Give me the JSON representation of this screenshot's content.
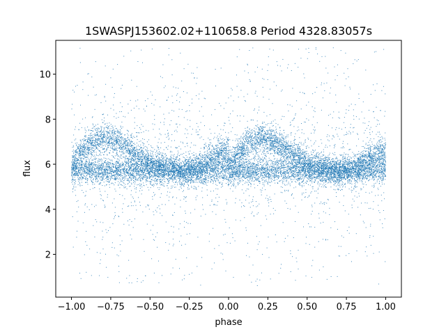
{
  "chart_data": {
    "type": "scatter",
    "title": "1SWASPJ153602.02+110658.8 Period 4328.83057s",
    "xlabel": "phase",
    "ylabel": "flux",
    "xlim": [
      -1.1,
      1.1
    ],
    "ylim": [
      0.1,
      11.5
    ],
    "xticks": [
      -1.0,
      -0.75,
      -0.5,
      -0.25,
      0.0,
      0.25,
      0.5,
      0.75,
      1.0
    ],
    "xtick_labels": [
      "−1.00",
      "−0.75",
      "−0.50",
      "−0.25",
      "0.00",
      "0.25",
      "0.50",
      "0.75",
      "1.00"
    ],
    "yticks": [
      2,
      4,
      6,
      8,
      10
    ],
    "ytick_labels": [
      "2",
      "4",
      "6",
      "8",
      "10"
    ],
    "grid": false,
    "marker_color": "#1f77b4",
    "x_range": [
      -1.0,
      1.0
    ],
    "period": 1.0,
    "baseline_flux": 5.7,
    "upper_branch": {
      "phase": [
        0.0,
        0.05,
        0.1,
        0.15,
        0.2,
        0.25,
        0.3,
        0.35,
        0.4,
        0.45,
        0.5,
        0.55,
        0.6,
        0.65,
        0.7,
        0.75,
        0.8,
        0.85,
        0.9,
        0.95,
        1.0
      ],
      "flux": [
        5.9,
        6.4,
        6.8,
        7.05,
        7.15,
        7.1,
        6.95,
        6.75,
        6.5,
        6.3,
        6.05,
        5.9,
        5.8,
        5.75,
        5.7,
        5.75,
        5.85,
        6.05,
        6.3,
        6.5,
        6.55
      ]
    },
    "scatter_std_core": 0.35,
    "scatter_outlier_range": [
      0.6,
      11.2
    ]
  }
}
